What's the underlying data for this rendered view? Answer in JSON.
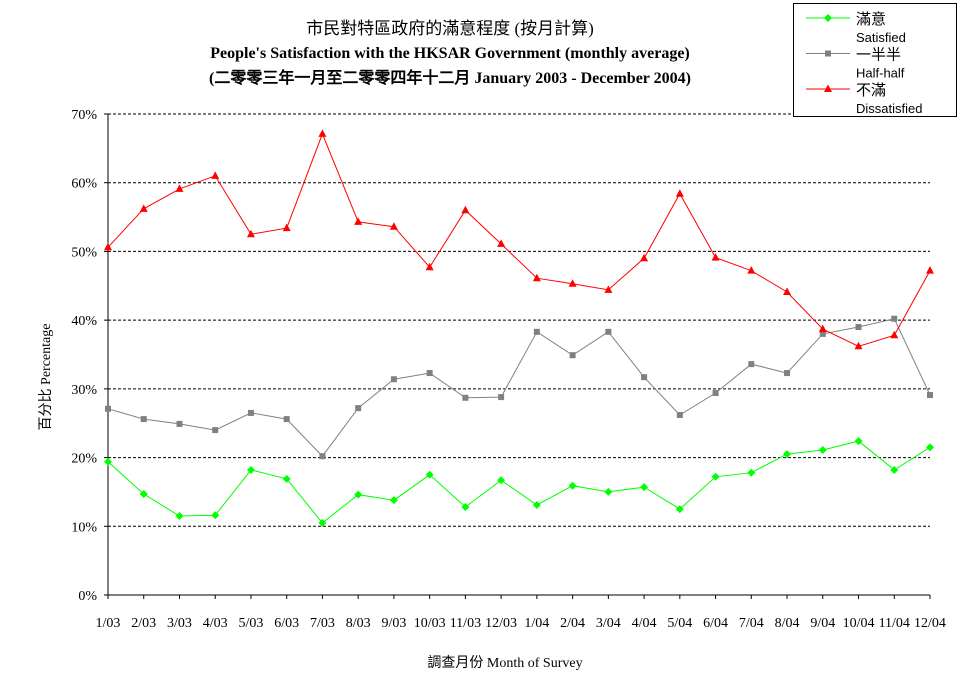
{
  "chart_data": {
    "type": "line",
    "title": "市民對特區政府的滿意程度 (按月計算)",
    "subtitle": "People's Satisfaction with the HKSAR Government (monthly average)",
    "date_range": "(二零零三年一月至二零零四年十二月 January 2003 - December 2004)",
    "xlabel": "調查月份 Month of Survey",
    "ylabel": "百分比 Percentage",
    "ylim": [
      0,
      70
    ],
    "yticks": [
      0,
      10,
      20,
      30,
      40,
      50,
      60,
      70
    ],
    "ytick_labels": [
      "0%",
      "10%",
      "20%",
      "30%",
      "40%",
      "50%",
      "60%",
      "70%"
    ],
    "grid": true,
    "legend": "top-right",
    "categories": [
      "1/03",
      "2/03",
      "3/03",
      "4/03",
      "5/03",
      "6/03",
      "7/03",
      "8/03",
      "9/03",
      "10/03",
      "11/03",
      "12/03",
      "1/04",
      "2/04",
      "3/04",
      "4/04",
      "5/04",
      "6/04",
      "7/04",
      "8/04",
      "9/04",
      "10/04",
      "11/04",
      "12/04"
    ],
    "series": [
      {
        "name": "滿意",
        "name_en": "Satisfied",
        "color": "#00ff00",
        "marker": "diamond",
        "values": [
          19.4,
          14.7,
          11.5,
          11.6,
          18.2,
          16.9,
          10.5,
          14.6,
          13.8,
          17.5,
          12.8,
          16.7,
          13.1,
          15.9,
          15.0,
          15.7,
          12.5,
          17.2,
          17.8,
          20.5,
          21.1,
          22.4,
          18.2,
          21.5
        ]
      },
      {
        "name": "一半半",
        "name_en": "Half-half",
        "color": "#808080",
        "marker": "square",
        "values": [
          27.1,
          25.6,
          24.9,
          24.0,
          26.5,
          25.6,
          20.2,
          27.2,
          31.4,
          32.3,
          28.7,
          28.8,
          38.3,
          34.9,
          38.3,
          31.7,
          26.2,
          29.4,
          33.6,
          32.3,
          38.0,
          39.0,
          40.2,
          29.1
        ]
      },
      {
        "name": "不滿",
        "name_en": "Dissatisfied",
        "color": "#ff0000",
        "marker": "triangle",
        "values": [
          50.6,
          56.2,
          59.1,
          61.0,
          52.5,
          53.4,
          67.1,
          54.3,
          53.6,
          47.7,
          56.0,
          51.1,
          46.1,
          45.3,
          44.4,
          49.0,
          58.4,
          49.1,
          47.2,
          44.1,
          38.7,
          36.2,
          37.8,
          47.2
        ]
      }
    ]
  }
}
